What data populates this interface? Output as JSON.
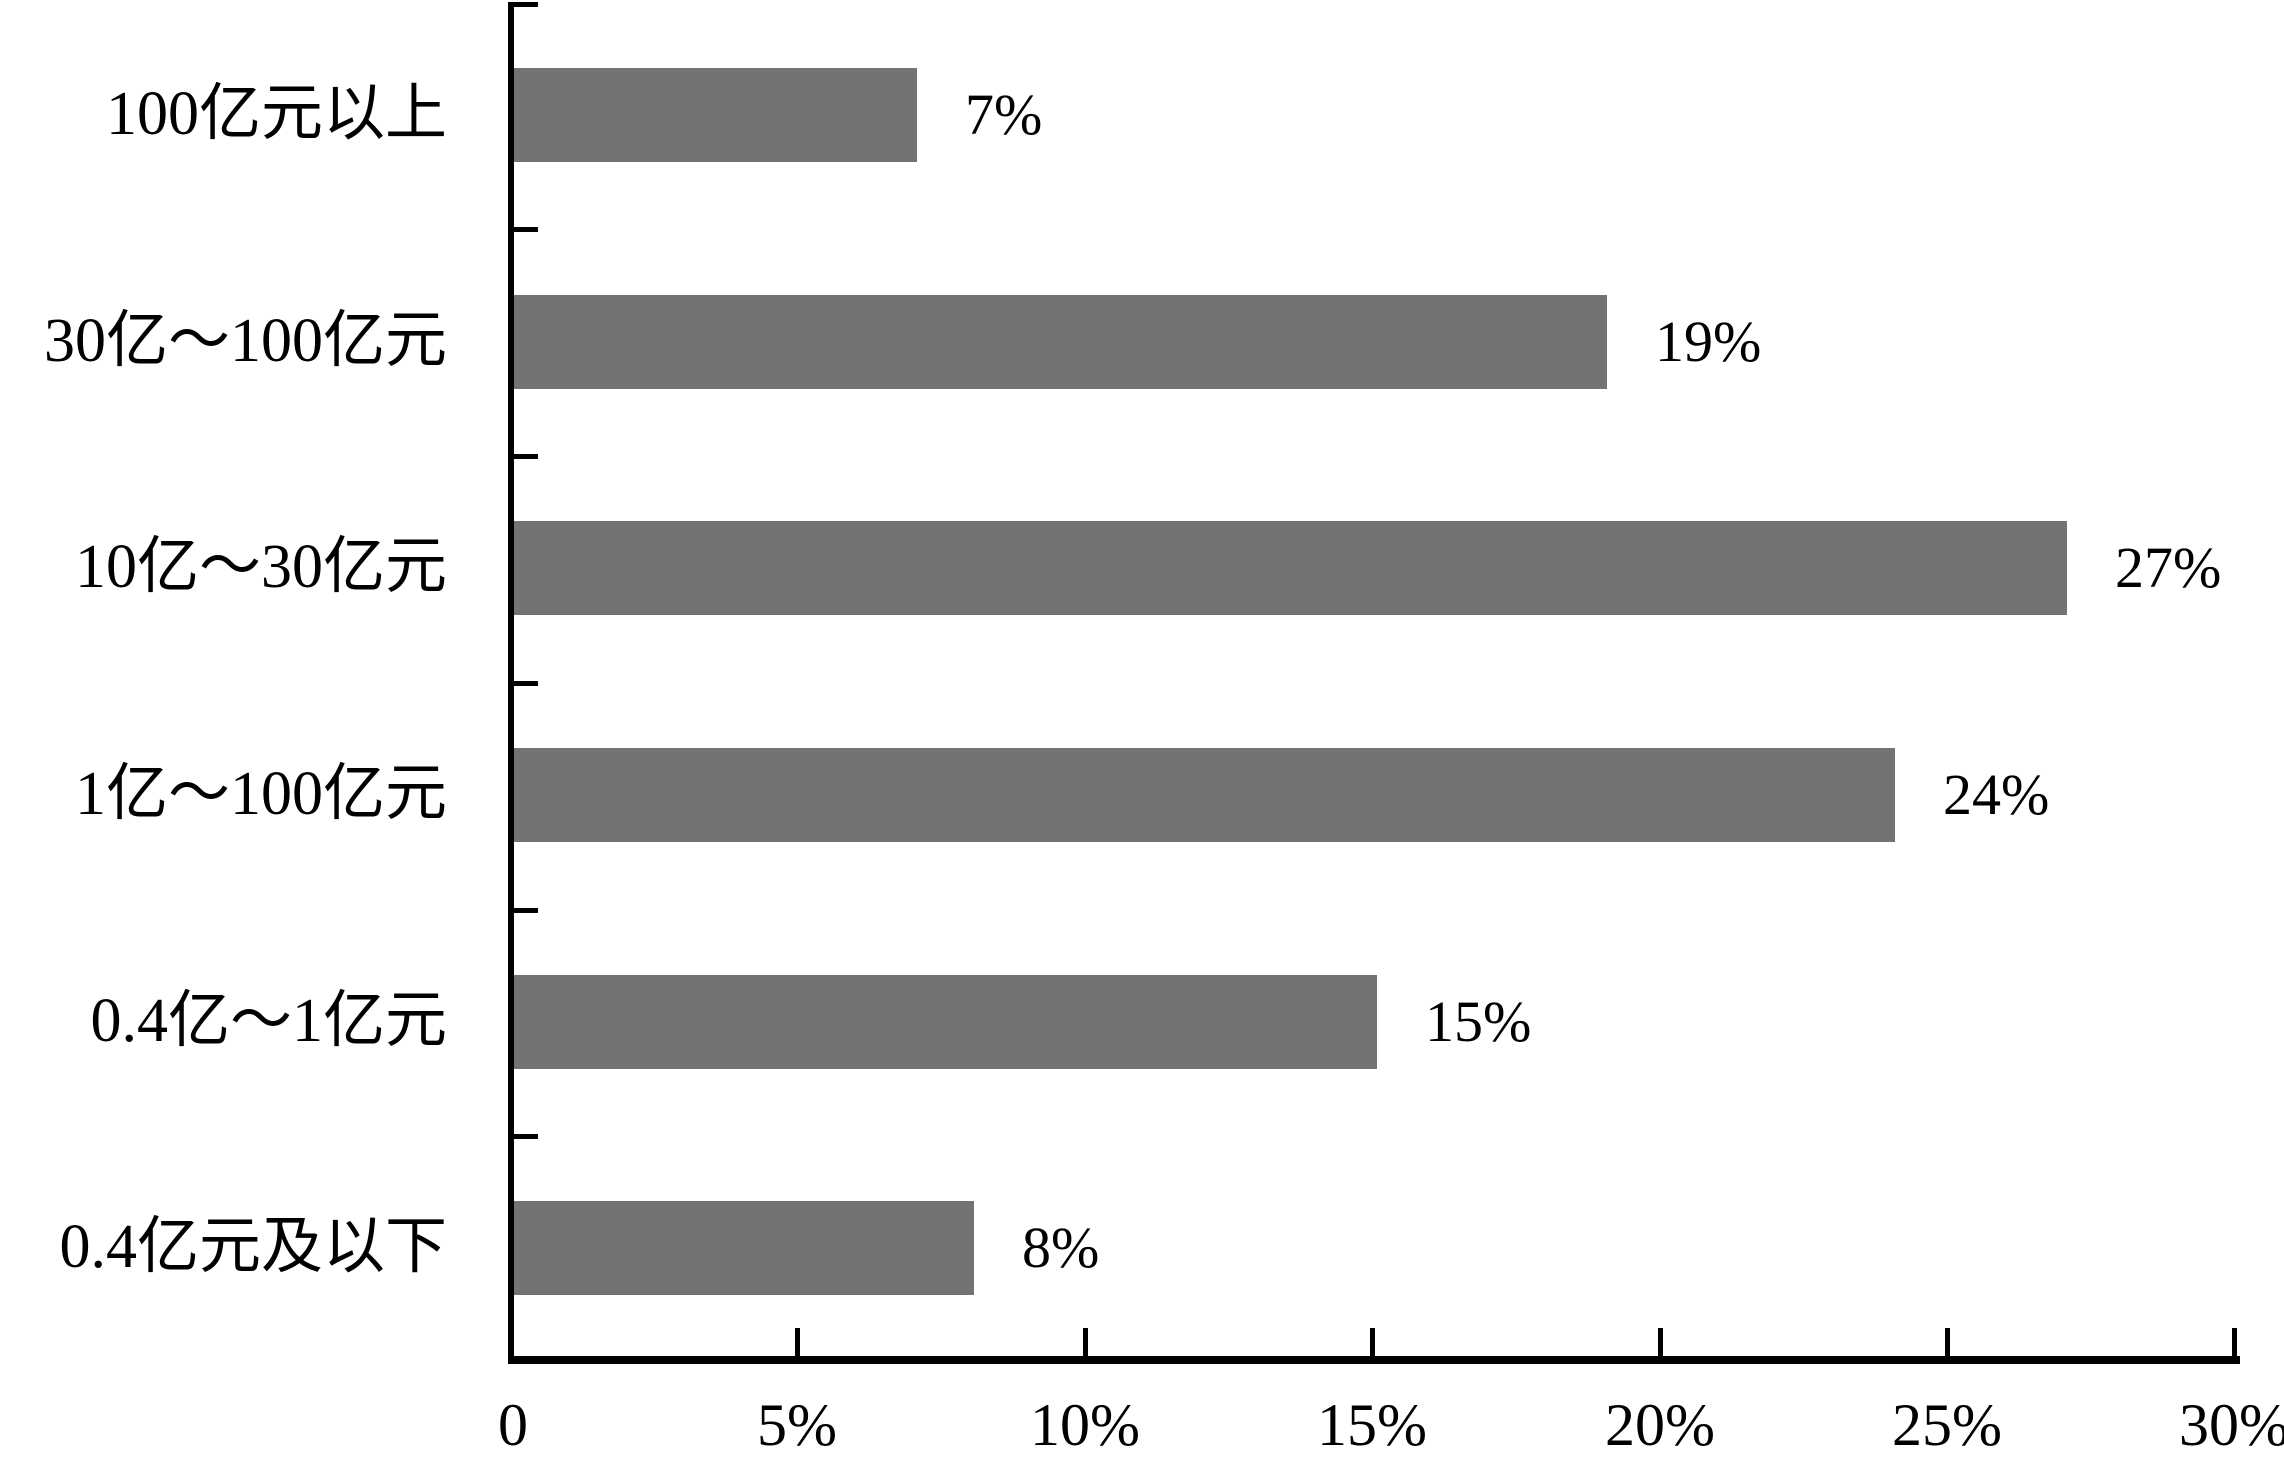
{
  "chart_data": {
    "type": "bar",
    "orientation": "horizontal",
    "title": "",
    "categories": [
      "100亿元以上",
      "30亿～100亿元",
      "10亿～30亿元",
      "1亿～100亿元",
      "0.4亿～1亿元",
      "0.4亿元及以下"
    ],
    "values": [
      7,
      19,
      27,
      24,
      15,
      8
    ],
    "value_labels": [
      "7%",
      "19%",
      "27%",
      "24%",
      "15%",
      "8%"
    ],
    "x_tick_labels": [
      "0",
      "5%",
      "10%",
      "15%",
      "20%",
      "25%",
      "30%"
    ],
    "xlim": [
      0,
      30
    ],
    "grid": false,
    "legend": "none",
    "bar_color": "#737373",
    "axis_color": "#000000",
    "text_color": "#000000",
    "background_color": "#ffffff"
  }
}
